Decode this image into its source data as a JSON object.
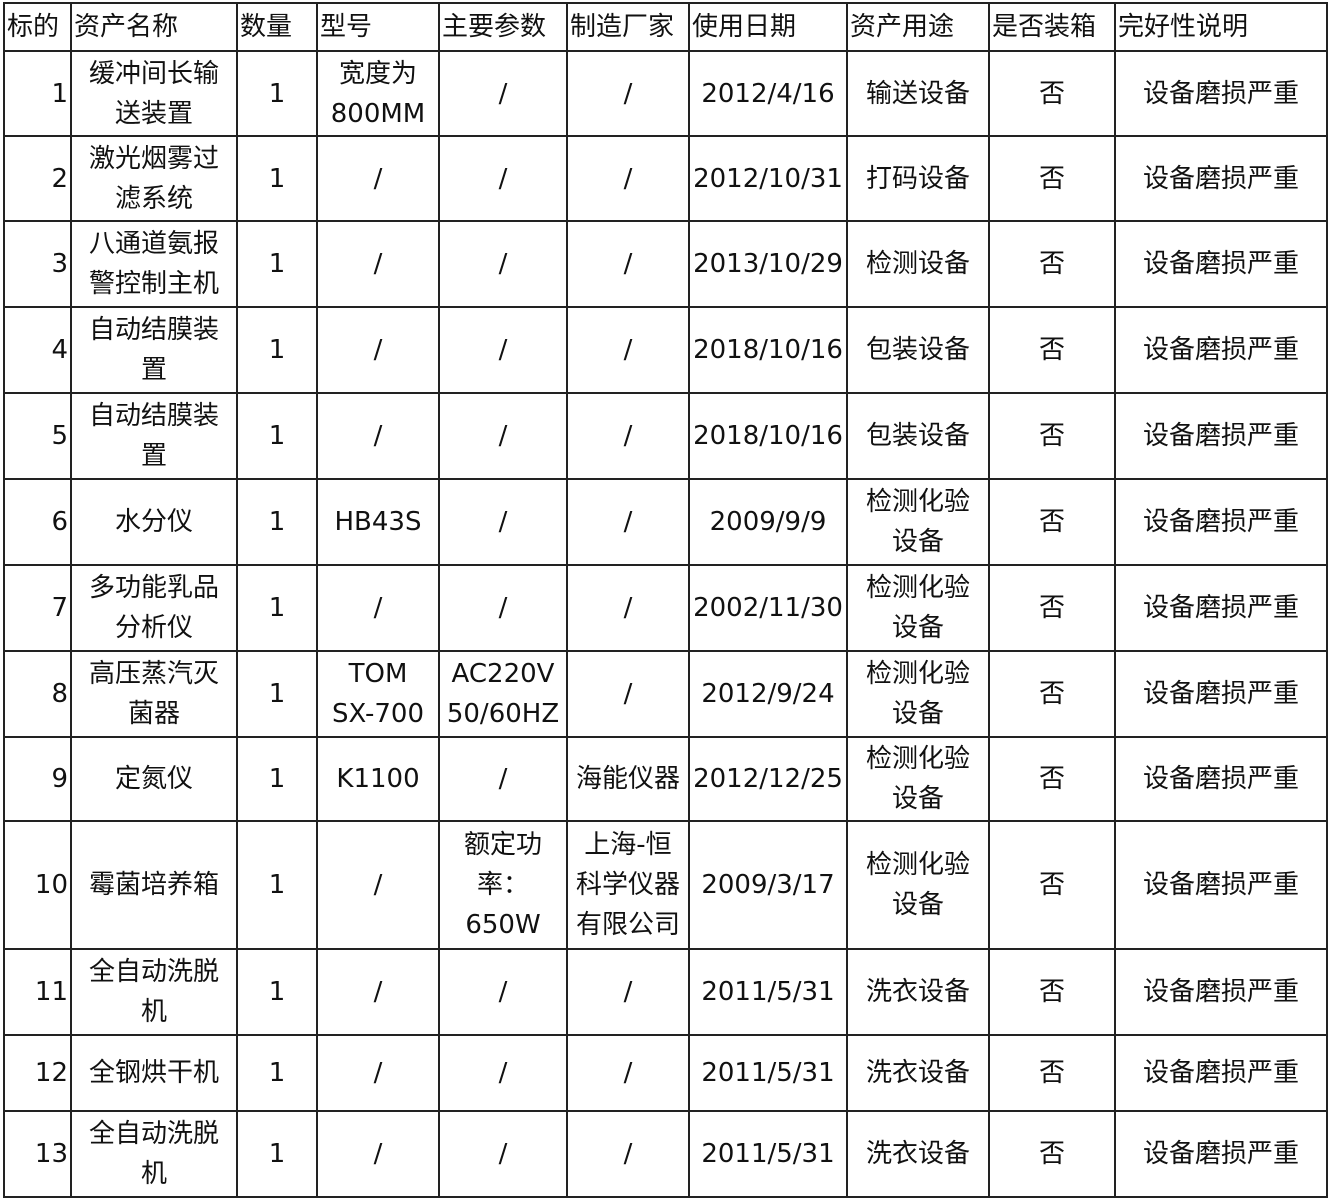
{
  "columns": [
    "标的",
    "资产名称",
    "数量",
    "型号",
    "主要参数",
    "制造厂家",
    "使用日期",
    "资产用途",
    "是否装箱",
    "完好性说明"
  ],
  "rows": [
    [
      "1",
      "缓冲间长输\n送装置",
      "1",
      "宽度为\n800MM",
      "/",
      "/",
      "2012/4/16",
      "输送设备",
      "否",
      "设备磨损严重"
    ],
    [
      "2",
      "激光烟雾过\n滤系统",
      "1",
      "/",
      "/",
      "/",
      "2012/10/31",
      "打码设备",
      "否",
      "设备磨损严重"
    ],
    [
      "3",
      "八通道氨报\n警控制主机",
      "1",
      "/",
      "/",
      "/",
      "2013/10/29",
      "检测设备",
      "否",
      "设备磨损严重"
    ],
    [
      "4",
      "自动结膜装\n置",
      "1",
      "/",
      "/",
      "/",
      "2018/10/16",
      "包装设备",
      "否",
      "设备磨损严重"
    ],
    [
      "5",
      "自动结膜装\n置",
      "1",
      "/",
      "/",
      "/",
      "2018/10/16",
      "包装设备",
      "否",
      "设备磨损严重"
    ],
    [
      "6",
      "水分仪",
      "1",
      "HB43S",
      "/",
      "/",
      "2009/9/9",
      "检测化验\n设备",
      "否",
      "设备磨损严重"
    ],
    [
      "7",
      "多功能乳品\n分析仪",
      "1",
      "/",
      "/",
      "/",
      "2002/11/30",
      "检测化验\n设备",
      "否",
      "设备磨损严重"
    ],
    [
      "8",
      "高压蒸汽灭\n菌器",
      "1",
      "TOM\nSX-700",
      "AC220V\n50/60HZ",
      "/",
      "2012/9/24",
      "检测化验\n设备",
      "否",
      "设备磨损严重"
    ],
    [
      "9",
      "定氮仪",
      "1",
      "K1100",
      "/",
      "海能仪器",
      "2012/12/25",
      "检测化验\n设备",
      "否",
      "设备磨损严重"
    ],
    [
      "10",
      "霉菌培养箱",
      "1",
      "/",
      "额定功\n率：650W",
      "上海-恒\n科学仪器\n有限公司",
      "2009/3/17",
      "检测化验\n设备",
      "否",
      "设备磨损严重"
    ],
    [
      "11",
      "全自动洗脱\n机",
      "1",
      "/",
      "/",
      "/",
      "2011/5/31",
      "洗衣设备",
      "否",
      "设备磨损严重"
    ],
    [
      "12",
      "全钢烘干机",
      "1",
      "/",
      "/",
      "/",
      "2011/5/31",
      "洗衣设备",
      "否",
      "设备磨损严重"
    ],
    [
      "13",
      "全自动洗脱\n机",
      "1",
      "/",
      "/",
      "/",
      "2011/5/31",
      "洗衣设备",
      "否",
      "设备磨损严重"
    ]
  ]
}
